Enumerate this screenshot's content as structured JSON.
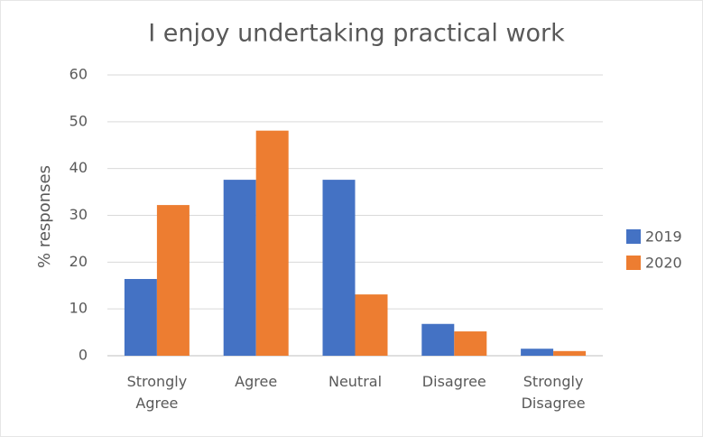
{
  "chart_data": {
    "type": "bar",
    "title": "I enjoy undertaking practical work",
    "y_label": "% responses",
    "categories": [
      "Strongly Agree",
      "Agree",
      "Neutral",
      "Disagree",
      "Strongly Disagree"
    ],
    "series": [
      {
        "name": "2019",
        "color": "#4472c4",
        "values": [
          16.4,
          37.6,
          37.6,
          6.8,
          1.5
        ]
      },
      {
        "name": "2020",
        "color": "#ed7d31",
        "values": [
          32.2,
          48.1,
          13.1,
          5.2,
          1.0
        ]
      }
    ],
    "ylim": [
      0,
      60
    ],
    "yticks": [
      0,
      10,
      20,
      30,
      40,
      50,
      60
    ],
    "grid": true,
    "legend": "right"
  }
}
